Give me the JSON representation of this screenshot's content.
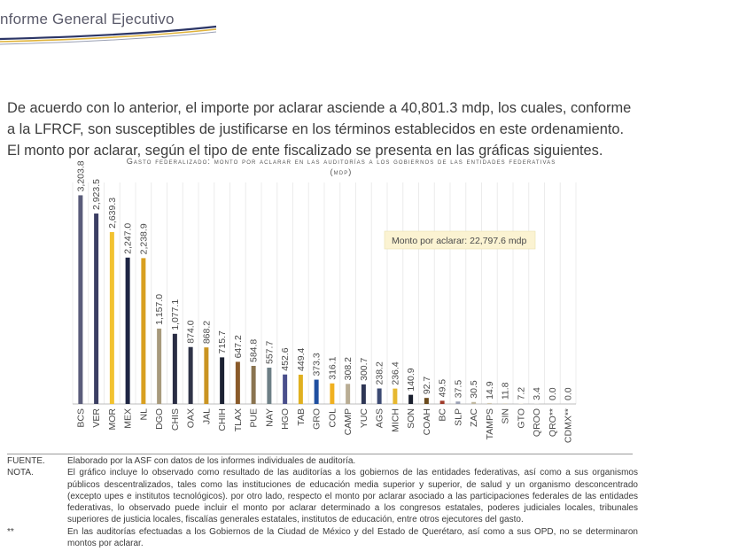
{
  "header": {
    "title": "nforme General Ejecutivo"
  },
  "intro": "De acuerdo con lo anterior, el importe por aclarar asciende a 40,801.3 mdp, los cuales, conforme a la LFRCF, son susceptibles de justificarse en los términos establecidos en este ordenamiento. El monto por aclarar, según el tipo de ente fiscalizado se presenta en las gráficas siguientes.",
  "chart_data": {
    "type": "bar",
    "title": "Gasto federalizado: monto por aclarar en las auditorías a los gobiernos de las entidades federativas",
    "subtitle": "(mdp)",
    "categories": [
      "BCS",
      "VER",
      "MOR",
      "MEX",
      "NL",
      "DGO",
      "CHIS",
      "OAX",
      "JAL",
      "CHIH",
      "TLAX",
      "PUE",
      "NAY",
      "HGO",
      "TAB",
      "GRO",
      "COL",
      "CAMP",
      "YUC",
      "AGS",
      "MICH",
      "SON",
      "COAH",
      "BC",
      "SLP",
      "ZAC",
      "TAMPS",
      "SIN",
      "GTO",
      "QROO",
      "QRO**",
      "CDMX**"
    ],
    "values": [
      3203.8,
      2923.5,
      2639.3,
      2247.0,
      2238.9,
      1157.0,
      1077.1,
      874.0,
      868.2,
      715.7,
      647.2,
      584.8,
      557.7,
      452.6,
      449.4,
      373.3,
      316.1,
      308.2,
      300.7,
      238.2,
      236.4,
      140.9,
      92.7,
      49.5,
      37.5,
      30.5,
      14.9,
      11.8,
      7.2,
      3.4,
      0.0,
      0.0
    ],
    "value_labels": [
      "3,203.8",
      "2,923.5",
      "2,639.3",
      "2,247.0",
      "2,238.9",
      "1,157.0",
      "1,077.1",
      "874.0",
      "868.2",
      "715.7",
      "647.2",
      "584.8",
      "557.7",
      "452.6",
      "449.4",
      "373.3",
      "316.1",
      "308.2",
      "300.7",
      "238.2",
      "236.4",
      "140.9",
      "92.7",
      "49.5",
      "37.5",
      "30.5",
      "14.9",
      "11.8",
      "7.2",
      "3.4",
      "0.0",
      "0.0"
    ],
    "colors": [
      "#5a5c7a",
      "#3b3e63",
      "#f2c230",
      "#1e2544",
      "#d9a020",
      "#a89a7c",
      "#2a2d44",
      "#2f3347",
      "#c99422",
      "#1c2233",
      "#8a5a2a",
      "#8a7450",
      "#6d7f86",
      "#4a4f8c",
      "#e0b020",
      "#1f4fa0",
      "#f0b020",
      "#b9ad94",
      "#2e3655",
      "#3c4a73",
      "#e6b830",
      "#1a1f2e",
      "#6a4a1c",
      "#9e3a2a",
      "#9aa0b4",
      "#c0b8a0",
      "#d0c8b0",
      "#e0d8c8",
      "#e8e0d0",
      "#eee8dc",
      "#f0ece4",
      "#f0ece4"
    ],
    "ylim": [
      0,
      3400
    ],
    "grid": true,
    "annotation": "Monto por aclarar: 22,797.6 mdp"
  },
  "notes": [
    {
      "label": "FUENTE.",
      "text": "Elaborado por la ASF con datos de los informes individuales de auditoría."
    },
    {
      "label": "NOTA.",
      "text": "El gráfico incluye lo observado como resultado de las auditorías a los gobiernos de las entidades federativas, así como a sus organismos públicos descentralizados, tales como las instituciones de educación media superior y superior, de salud y un organismo desconcentrado (excepto upes e institutos tecnológicos). por otro lado, respecto el monto por aclarar asociado a las participaciones federales de las entidades federativas, lo observado puede incluir el monto por aclarar determinado a los congresos estatales, poderes judiciales locales, tribunales superiores de justicia locales, fiscalías generales estatales, institutos de educación, entre otros ejecutores del gasto."
    },
    {
      "label": "**",
      "text": "En las auditorías efectuadas a los Gobiernos de la Ciudad de México y del Estado de Querétaro, así como a sus OPD, no se determinaron montos por aclarar."
    }
  ]
}
